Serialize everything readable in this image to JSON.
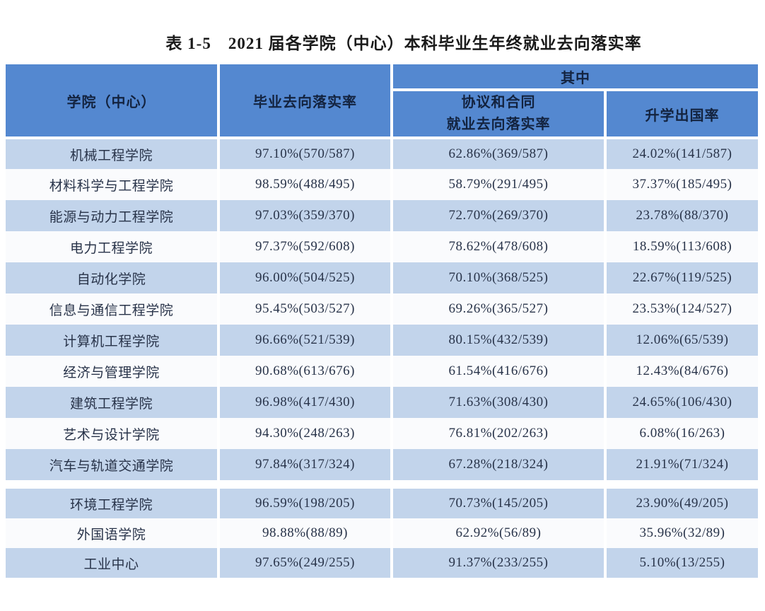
{
  "page": {
    "title": "表 1-5　2021 届各学院（中心）本科毕业生年终就业去向落实率"
  },
  "table": {
    "headers": {
      "college": "学院（中心）",
      "overall": "毕业去向落实率",
      "group": "其中",
      "contract_line1": "协议和合同",
      "contract_line2": "就业去向落实率",
      "further": "升学出国率"
    },
    "rows": [
      {
        "college": "机械工程学院",
        "overall": "97.10%(570/587)",
        "contract": "62.86%(369/587)",
        "further": "24.02%(141/587)"
      },
      {
        "college": "材料科学与工程学院",
        "overall": "98.59%(488/495)",
        "contract": "58.79%(291/495)",
        "further": "37.37%(185/495)"
      },
      {
        "college": "能源与动力工程学院",
        "overall": "97.03%(359/370)",
        "contract": "72.70%(269/370)",
        "further": "23.78%(88/370)"
      },
      {
        "college": "电力工程学院",
        "overall": "97.37%(592/608)",
        "contract": "78.62%(478/608)",
        "further": "18.59%(113/608)"
      },
      {
        "college": "自动化学院",
        "overall": "96.00%(504/525)",
        "contract": "70.10%(368/525)",
        "further": "22.67%(119/525)"
      },
      {
        "college": "信息与通信工程学院",
        "overall": "95.45%(503/527)",
        "contract": "69.26%(365/527)",
        "further": "23.53%(124/527)"
      },
      {
        "college": "计算机工程学院",
        "overall": "96.66%(521/539)",
        "contract": "80.15%(432/539)",
        "further": "12.06%(65/539)"
      },
      {
        "college": "经济与管理学院",
        "overall": "90.68%(613/676)",
        "contract": "61.54%(416/676)",
        "further": "12.43%(84/676)"
      },
      {
        "college": "建筑工程学院",
        "overall": "96.98%(417/430)",
        "contract": "71.63%(308/430)",
        "further": "24.65%(106/430)"
      },
      {
        "college": "艺术与设计学院",
        "overall": "94.30%(248/263)",
        "contract": "76.81%(202/263)",
        "further": "6.08%(16/263)"
      },
      {
        "college": "汽车与轨道交通学院",
        "overall": "97.84%(317/324)",
        "contract": "67.28%(218/324)",
        "further": "21.91%(71/324)"
      },
      {
        "college": "环境工程学院",
        "overall": "96.59%(198/205)",
        "contract": "70.73%(145/205)",
        "further": "23.90%(49/205)"
      },
      {
        "college": "外国语学院",
        "overall": "98.88%(88/89)",
        "contract": "62.92%(56/89)",
        "further": "35.96%(32/89)"
      },
      {
        "college": "工业中心",
        "overall": "97.65%(249/255)",
        "contract": "91.37%(233/255)",
        "further": "5.10%(13/255)"
      }
    ]
  },
  "colors": {
    "header_bg": "#5488D0",
    "row_light_bg": "#C2D4EB",
    "row_white_bg": "#FAFBFD",
    "grid_line": "#FFFFFF",
    "header_text": "#13233F",
    "body_text": "#283349",
    "title_text": "#1A1A1A"
  }
}
